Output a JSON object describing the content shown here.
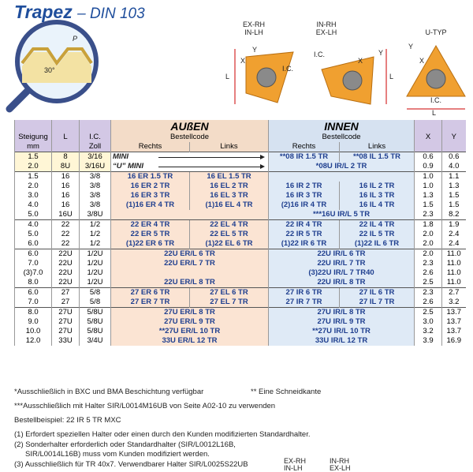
{
  "header": {
    "title": "Trapez",
    "subtitle": "– DIN 103"
  },
  "diagram": {
    "pitch": "P",
    "angle": "30°",
    "ex_rh": "EX-RH",
    "in_lh": "IN-LH",
    "in_rh": "IN-RH",
    "ex_lh": "EX-LH",
    "u_typ": "U-TYP",
    "x": "X",
    "y": "Y",
    "l": "L",
    "ic": "I.C."
  },
  "table": {
    "columns": {
      "steigung": "Steigung",
      "steigung_unit": "mm",
      "l": "L",
      "ic": "I.C.",
      "ic_unit": "Zoll",
      "aussen": "AUßEN",
      "innen": "INNEN",
      "bestellcode": "Bestellcode",
      "rechts": "Rechts",
      "links": "Links",
      "x": "X",
      "y": "Y"
    },
    "groups": [
      [
        {
          "s": "1.5",
          "l": "8",
          "ic": "3/16",
          "a": [
            "MINI"
          ],
          "arrow": true,
          "i": [
            "**08 IR 1.5 TR",
            "**08 IL 1.5 TR"
          ],
          "x": "0.6",
          "y": "0.6"
        },
        {
          "s": "2.0",
          "l": "8U",
          "ic": "3/16U",
          "a": [
            "“U” MINI"
          ],
          "arrow": true,
          "i": [
            "*08U IR/L 2 TR"
          ],
          "x": "0.9",
          "y": "4.0"
        }
      ],
      [
        {
          "s": "1.5",
          "l": "16",
          "ic": "3/8",
          "a": [
            "16 ER 1.5 TR",
            "16 EL 1.5 TR"
          ],
          "i": [],
          "x": "1.0",
          "y": "1.1"
        },
        {
          "s": "2.0",
          "l": "16",
          "ic": "3/8",
          "a": [
            "16 ER 2 TR",
            "16 EL 2 TR"
          ],
          "i": [
            "16 IR 2 TR",
            "16 IL 2 TR"
          ],
          "x": "1.0",
          "y": "1.3"
        },
        {
          "s": "3.0",
          "l": "16",
          "ic": "3/8",
          "a": [
            "16 ER 3 TR",
            "16 EL 3 TR"
          ],
          "i": [
            "16 IR 3 TR",
            "16 IL 3 TR"
          ],
          "x": "1.3",
          "y": "1.5"
        },
        {
          "s": "4.0",
          "l": "16",
          "ic": "3/8",
          "a": [
            "(1)16 ER 4 TR",
            "(1)16 EL 4 TR"
          ],
          "i": [
            "(2)16 IR 4 TR",
            "16 IL 4 TR"
          ],
          "x": "1.5",
          "y": "1.5"
        },
        {
          "s": "5.0",
          "l": "16U",
          "ic": "3/8U",
          "a": [],
          "i": [
            "***16U IR/L 5 TR"
          ],
          "x": "2.3",
          "y": "8.2"
        }
      ],
      [
        {
          "s": "4.0",
          "l": "22",
          "ic": "1/2",
          "a": [
            "22 ER 4 TR",
            "22 EL 4 TR"
          ],
          "i": [
            "22 IR 4 TR",
            "22 IL 4 TR"
          ],
          "x": "1.8",
          "y": "1.9"
        },
        {
          "s": "5.0",
          "l": "22",
          "ic": "1/2",
          "a": [
            "22 ER 5 TR",
            "22 EL 5 TR"
          ],
          "i": [
            "22 IR 5 TR",
            "22 IL 5 TR"
          ],
          "x": "2.0",
          "y": "2.4"
        },
        {
          "s": "6.0",
          "l": "22",
          "ic": "1/2",
          "a": [
            "(1)22 ER 6 TR",
            "(1)22 EL 6 TR"
          ],
          "i": [
            "(1)22 IR 6 TR",
            "(1)22 IL 6 TR"
          ],
          "x": "2.0",
          "y": "2.4"
        }
      ],
      [
        {
          "s": "6.0",
          "l": "22U",
          "ic": "1/2U",
          "a": [
            "22U ER/L 6 TR"
          ],
          "i": [
            "22U IR/L 6 TR"
          ],
          "x": "2.0",
          "y": "11.0"
        },
        {
          "s": "7.0",
          "l": "22U",
          "ic": "1/2U",
          "a": [
            "22U ER/L 7 TR"
          ],
          "i": [
            "22U IR/L 7 TR"
          ],
          "x": "2.3",
          "y": "11.0"
        },
        {
          "s": "(3)7.0",
          "l": "22U",
          "ic": "1/2U",
          "a": [],
          "i": [
            "(3)22U IR/L 7 TR40"
          ],
          "x": "2.6",
          "y": "11.0"
        },
        {
          "s": "8.0",
          "l": "22U",
          "ic": "1/2U",
          "a": [
            "22U ER/L 8 TR"
          ],
          "i": [
            "22U IR/L 8 TR"
          ],
          "x": "2.5",
          "y": "11.0"
        }
      ],
      [
        {
          "s": "6.0",
          "l": "27",
          "ic": "5/8",
          "a": [
            "27 ER 6 TR",
            "27 EL 6 TR"
          ],
          "i": [
            "27 IR 6 TR",
            "27 IL 6 TR"
          ],
          "x": "2.3",
          "y": "2.7"
        },
        {
          "s": "7.0",
          "l": "27",
          "ic": "5/8",
          "a": [
            "27 ER 7 TR",
            "27 EL 7 TR"
          ],
          "i": [
            "27 IR 7 TR",
            "27 IL 7 TR"
          ],
          "x": "2.6",
          "y": "3.2"
        }
      ],
      [
        {
          "s": "8.0",
          "l": "27U",
          "ic": "5/8U",
          "a": [
            "27U ER/L 8 TR"
          ],
          "i": [
            "27U IR/L 8 TR"
          ],
          "x": "2.5",
          "y": "13.7"
        },
        {
          "s": "9.0",
          "l": "27U",
          "ic": "5/8U",
          "a": [
            "27U ER/L 9 TR"
          ],
          "i": [
            "27U IR/L 9 TR"
          ],
          "x": "3.0",
          "y": "13.7"
        },
        {
          "s": "10.0",
          "l": "27U",
          "ic": "5/8U",
          "a": [
            "**27U ER/L 10 TR"
          ],
          "i": [
            "**27U IR/L 10 TR"
          ],
          "x": "3.2",
          "y": "13.7"
        },
        {
          "s": "12.0",
          "l": "33U",
          "ic": "3/4U",
          "a": [
            "33U ER/L 12 TR"
          ],
          "i": [
            "33U IR/L 12 TR"
          ],
          "x": "3.9",
          "y": "16.9"
        }
      ]
    ]
  },
  "footnotes": {
    "star1": "*Ausschließlich in BXC und BMA Beschichtung verfügbar",
    "star2": "** Eine Schneidkante",
    "star3": "***Ausschließlich mit Halter SIR/L0014M16UB von Seite A02-10 zu verwenden",
    "example": "Bestellbeispiel: 22 IR 5 TR MXC",
    "n1": "(1) Erfordert speziellen Halter oder einen durch den Kunden modifizierten Standardhalter.",
    "n2a": "(2) Sonderhalter erforderlich oder Standardhalter (SIR/L0012L16B,",
    "n2b": "SIR/L0014L16B) muss vom Kunden modifiziert werden.",
    "n3": "(3) Ausschließlich für TR 40x7. Verwendbarer Halter SIR/L0025S22UB"
  },
  "legend": {
    "ex_rh": "EX-RH",
    "in_lh": "IN-LH",
    "in_rh": "IN-RH",
    "ex_lh": "EX-LH"
  }
}
